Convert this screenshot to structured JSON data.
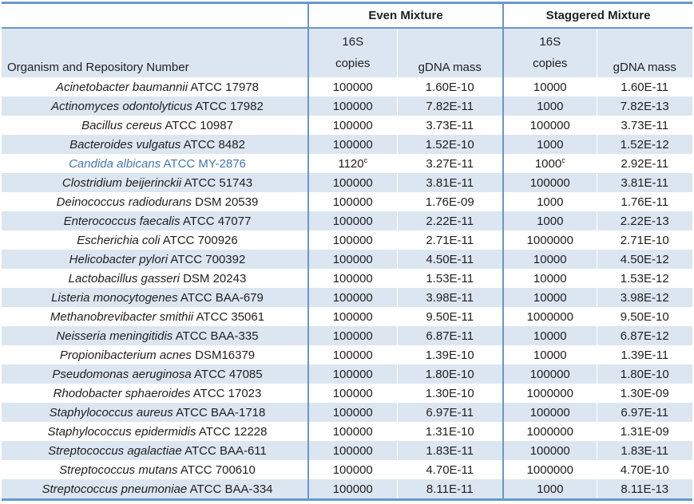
{
  "page": {
    "background": "#ffffff"
  },
  "table": {
    "colors": {
      "band_fill": "#dce6f1",
      "frame_border": "#6898c8",
      "highlight_row_text": "#4377b0",
      "body_text": "#1f1f1f"
    },
    "header": {
      "organism_column_label": "Organism and Repository Number",
      "even_mixture_label": "Even Mixture",
      "staggered_mixture_label": "Staggered Mixture",
      "copies_label_line1": "16S",
      "copies_label_line2": "copies",
      "gdna_label_even": "gDNA mass",
      "copies_label_line1_stag": "16S",
      "copies_label_line2_stag": "copies",
      "gdna_label_stag": "gDNA mass"
    },
    "rows": [
      {
        "organism": "Acinetobacter baumannii",
        "repository": "ATCC 17978",
        "even_copies": "100000",
        "even_gdna": "1.60E-10",
        "stag_copies": "10000",
        "stag_gdna": "1.60E-11"
      },
      {
        "organism": "Actinomyces odontolyticus",
        "repository": "ATCC 17982",
        "even_copies": "100000",
        "even_gdna": "7.82E-11",
        "stag_copies": "1000",
        "stag_gdna": "7.82E-13"
      },
      {
        "organism": "Bacillus cereus",
        "repository": "ATCC 10987",
        "even_copies": "100000",
        "even_gdna": "3.73E-11",
        "stag_copies": "100000",
        "stag_gdna": "3.73E-11"
      },
      {
        "organism": "Bacteroides vulgatus",
        "repository": "ATCC 8482",
        "even_copies": "100000",
        "even_gdna": "1.52E-10",
        "stag_copies": "1000",
        "stag_gdna": "1.52E-12"
      },
      {
        "organism": "Candida albicans",
        "repository": "ATCC MY-2876",
        "highlighted": true,
        "even_copies": "1120",
        "even_copies_sup": "c",
        "even_gdna": "3.27E-11",
        "stag_copies": "1000",
        "stag_copies_sup": "c",
        "stag_gdna": "2.92E-11"
      },
      {
        "organism": "Clostridium beijerinckii",
        "repository": "ATCC 51743",
        "even_copies": "100000",
        "even_gdna": "3.81E-11",
        "stag_copies": "100000",
        "stag_gdna": "3.81E-11"
      },
      {
        "organism": "Deinococcus radiodurans",
        "repository": "DSM 20539",
        "even_copies": "100000",
        "even_gdna": "1.76E-09",
        "stag_copies": "1000",
        "stag_gdna": "1.76E-11"
      },
      {
        "organism": "Enterococcus faecalis",
        "repository": "ATCC 47077",
        "even_copies": "100000",
        "even_gdna": "2.22E-11",
        "stag_copies": "1000",
        "stag_gdna": "2.22E-13"
      },
      {
        "organism": "Escherichia coli",
        "repository": "ATCC 700926",
        "even_copies": "100000",
        "even_gdna": "2.71E-11",
        "stag_copies": "1000000",
        "stag_gdna": "2.71E-10"
      },
      {
        "organism": "Helicobacter pylori",
        "repository": "ATCC 700392",
        "even_copies": "100000",
        "even_gdna": "4.50E-11",
        "stag_copies": "10000",
        "stag_gdna": "4.50E-12"
      },
      {
        "organism": "Lactobacillus gasseri",
        "repository": "DSM 20243",
        "even_copies": "100000",
        "even_gdna": "1.53E-11",
        "stag_copies": "10000",
        "stag_gdna": "1.53E-12"
      },
      {
        "organism": "Listeria monocytogenes",
        "repository": "ATCC BAA-679",
        "even_copies": "100000",
        "even_gdna": "3.98E-11",
        "stag_copies": "10000",
        "stag_gdna": "3.98E-12"
      },
      {
        "organism": "Methanobrevibacter smithii",
        "repository": "ATCC 35061",
        "even_copies": "100000",
        "even_gdna": "9.50E-11",
        "stag_copies": "1000000",
        "stag_gdna": "9.50E-10"
      },
      {
        "organism": "Neisseria meningitidis",
        "repository": "ATCC BAA-335",
        "even_copies": "100000",
        "even_gdna": "6.87E-11",
        "stag_copies": "10000",
        "stag_gdna": "6.87E-12"
      },
      {
        "organism": "Propionibacterium acnes",
        "repository": "DSM16379",
        "even_copies": "100000",
        "even_gdna": "1.39E-10",
        "stag_copies": "10000",
        "stag_gdna": "1.39E-11"
      },
      {
        "organism": "Pseudomonas aeruginosa",
        "repository": "ATCC 47085",
        "even_copies": "100000",
        "even_gdna": "1.80E-10",
        "stag_copies": "100000",
        "stag_gdna": "1.80E-10"
      },
      {
        "organism": "Rhodobacter sphaeroides",
        "repository": "ATCC 17023",
        "even_copies": "100000",
        "even_gdna": "1.30E-10",
        "stag_copies": "1000000",
        "stag_gdna": "1.30E-09"
      },
      {
        "organism": "Staphylococcus aureus",
        "repository": "ATCC BAA-1718",
        "even_copies": "100000",
        "even_gdna": "6.97E-11",
        "stag_copies": "100000",
        "stag_gdna": "6.97E-11"
      },
      {
        "organism": "Staphylococcus epidermidis",
        "repository": "ATCC 12228",
        "even_copies": "100000",
        "even_gdna": "1.31E-10",
        "stag_copies": "1000000",
        "stag_gdna": "1.31E-09"
      },
      {
        "organism": "Streptococcus agalactiae",
        "repository": "ATCC BAA-611",
        "even_copies": "100000",
        "even_gdna": "1.83E-11",
        "stag_copies": "100000",
        "stag_gdna": "1.83E-11"
      },
      {
        "organism": "Streptococcus mutans",
        "repository": "ATCC 700610",
        "even_copies": "100000",
        "even_gdna": "4.70E-11",
        "stag_copies": "1000000",
        "stag_gdna": "4.70E-10"
      },
      {
        "organism": "Streptococcus pneumoniae",
        "repository": "ATCC BAA-334",
        "even_copies": "100000",
        "even_gdna": "8.11E-11",
        "stag_copies": "1000",
        "stag_gdna": "8.11E-13"
      }
    ]
  }
}
